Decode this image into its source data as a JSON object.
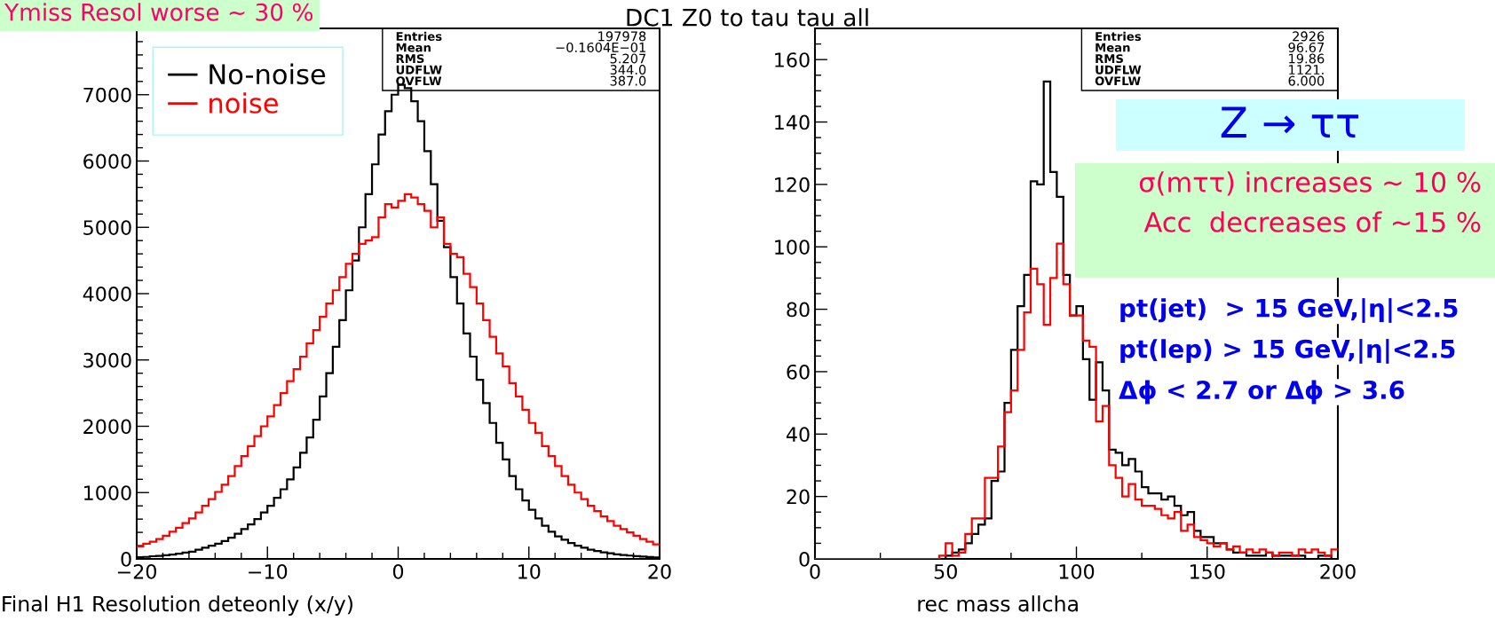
{
  "chart_data": [
    {
      "type": "histogram",
      "title": "DC1 Z0 to tau tau all",
      "xlabel": "Final H1 Resolution deteonly (x/y)",
      "legend": "top left",
      "bins": [
        -20,
        -19.5,
        -19,
        -18.5,
        -18,
        -17.5,
        -17,
        -16.5,
        -16,
        -15.5,
        -15,
        -14.5,
        -14,
        -13.5,
        -13,
        -12.5,
        -12,
        -11.5,
        -11,
        -10.5,
        -10,
        -9.5,
        -9,
        -8.5,
        -8,
        -7.5,
        -7,
        -6.5,
        -6,
        -5.5,
        -5,
        -4.5,
        -4,
        -3.5,
        -3,
        -2.5,
        -2,
        -1.5,
        -1,
        -0.5,
        0,
        0.5,
        1,
        1.5,
        2,
        2.5,
        3,
        3.5,
        4,
        4.5,
        5,
        5.5,
        6,
        6.5,
        7,
        7.5,
        8,
        8.5,
        9,
        9.5,
        10,
        10.5,
        11,
        11.5,
        12,
        12.5,
        13,
        13.5,
        14,
        14.5,
        15,
        15.5,
        16,
        16.5,
        17,
        17.5,
        18,
        18.5,
        19,
        19.5,
        20
      ],
      "series": [
        {
          "name": "No-noise",
          "color": "#000000",
          "values": [
            25,
            30,
            40,
            45,
            55,
            65,
            80,
            95,
            110,
            140,
            170,
            200,
            230,
            270,
            320,
            380,
            450,
            520,
            600,
            700,
            800,
            920,
            1050,
            1200,
            1380,
            1600,
            1830,
            2100,
            2450,
            2800,
            3200,
            3600,
            4050,
            4500,
            5000,
            5500,
            5950,
            6400,
            6750,
            7000,
            7150,
            7100,
            6900,
            6600,
            6150,
            5650,
            5100,
            4700,
            4250,
            3850,
            3400,
            3050,
            2700,
            2350,
            2050,
            1750,
            1500,
            1250,
            1050,
            880,
            740,
            610,
            500,
            410,
            340,
            290,
            240,
            200,
            170,
            140,
            120,
            100,
            85,
            70,
            60,
            50,
            42,
            35,
            28,
            22
          ]
        },
        {
          "name": "noise",
          "color": "#ff0000",
          "values": [
            190,
            230,
            260,
            300,
            350,
            410,
            470,
            540,
            610,
            700,
            800,
            900,
            1010,
            1120,
            1250,
            1400,
            1550,
            1700,
            1850,
            2000,
            2150,
            2320,
            2500,
            2680,
            2860,
            3050,
            3250,
            3450,
            3650,
            3850,
            4050,
            4250,
            4450,
            4600,
            4750,
            4800,
            4850,
            5150,
            5350,
            5300,
            5400,
            5500,
            5450,
            5350,
            5250,
            5000,
            5150,
            4750,
            4600,
            4550,
            4300,
            4100,
            3850,
            3600,
            3350,
            3100,
            2900,
            2650,
            2450,
            2250,
            2050,
            1900,
            1700,
            1550,
            1400,
            1250,
            1120,
            1000,
            900,
            800,
            720,
            640,
            570,
            500,
            450,
            400,
            350,
            300,
            260,
            220
          ]
        }
      ],
      "xlim": [
        -20,
        20
      ],
      "xticks": [
        {
          "value": -20,
          "label": "−20"
        },
        {
          "value": -18,
          "label": null
        },
        {
          "value": -16,
          "label": null
        },
        {
          "value": -14,
          "label": null
        },
        {
          "value": -12,
          "label": null
        },
        {
          "value": -10,
          "label": "−10"
        },
        {
          "value": -8,
          "label": null
        },
        {
          "value": -6,
          "label": null
        },
        {
          "value": -4,
          "label": null
        },
        {
          "value": -2,
          "label": null
        },
        0,
        {
          "value": 2,
          "label": null
        },
        {
          "value": 4,
          "label": null
        },
        {
          "value": 6,
          "label": null
        },
        {
          "value": 8,
          "label": null
        },
        10,
        {
          "value": 12,
          "label": null
        },
        {
          "value": 14,
          "label": null
        },
        {
          "value": 16,
          "label": null
        },
        {
          "value": 18,
          "label": null
        },
        20
      ],
      "ylim": [
        0,
        8000
      ],
      "yticks": [
        0,
        {
          "value": 200,
          "label": null
        },
        {
          "value": 400,
          "label": null
        },
        {
          "value": 600,
          "label": null
        },
        {
          "value": 800,
          "label": null
        },
        1000,
        {
          "value": 1200,
          "label": null
        },
        {
          "value": 1400,
          "label": null
        },
        {
          "value": 1600,
          "label": null
        },
        {
          "value": 1800,
          "label": null
        },
        2000,
        {
          "value": 2200,
          "label": null
        },
        {
          "value": 2400,
          "label": null
        },
        {
          "value": 2600,
          "label": null
        },
        {
          "value": 2800,
          "label": null
        },
        3000,
        {
          "value": 3200,
          "label": null
        },
        {
          "value": 3400,
          "label": null
        },
        {
          "value": 3600,
          "label": null
        },
        {
          "value": 3800,
          "label": null
        },
        4000,
        {
          "value": 4200,
          "label": null
        },
        {
          "value": 4400,
          "label": null
        },
        {
          "value": 4600,
          "label": null
        },
        {
          "value": 4800,
          "label": null
        },
        5000,
        {
          "value": 5200,
          "label": null
        },
        {
          "value": 5400,
          "label": null
        },
        {
          "value": 5600,
          "label": null
        },
        {
          "value": 5800,
          "label": null
        },
        6000,
        {
          "value": 6200,
          "label": null
        },
        {
          "value": 6400,
          "label": null
        },
        {
          "value": 6600,
          "label": null
        },
        {
          "value": 6800,
          "label": null
        },
        7000,
        {
          "value": 7200,
          "label": null
        },
        {
          "value": 7400,
          "label": null
        },
        {
          "value": 7600,
          "label": null
        },
        {
          "value": 7800,
          "label": null
        }
      ],
      "annotations": [
        "Ymiss Resol worse ~ 30 %",
        "Entries 197978",
        "Mean −0.1604E−01",
        "RMS 5.207",
        "UDFLW 344.0",
        "OVFLW 387.0"
      ]
    },
    {
      "type": "histogram",
      "xlabel": "rec mass allcha",
      "bins": [
        0,
        2.5,
        5,
        7.5,
        10,
        12.5,
        15,
        17.5,
        20,
        22.5,
        25,
        27.5,
        30,
        32.5,
        35,
        37.5,
        40,
        42.5,
        45,
        47.5,
        50,
        52.5,
        55,
        57.5,
        60,
        62.5,
        65,
        67.5,
        70,
        72.5,
        75,
        77.5,
        80,
        82.5,
        85,
        87.5,
        90,
        92.5,
        95,
        97.5,
        100,
        102.5,
        105,
        107.5,
        110,
        112.5,
        115,
        117.5,
        120,
        122.5,
        125,
        127.5,
        130,
        132.5,
        135,
        137.5,
        140,
        142.5,
        145,
        147.5,
        150,
        152.5,
        155,
        157.5,
        160,
        162.5,
        165,
        167.5,
        170,
        172.5,
        175,
        177.5,
        180,
        182.5,
        185,
        187.5,
        190,
        192.5,
        195,
        197.5,
        200
      ],
      "series": [
        {
          "color": "#000000",
          "values": [
            0,
            0,
            0,
            0,
            0,
            0,
            0,
            0,
            0,
            0,
            0,
            0,
            0,
            0,
            0,
            0,
            0,
            0,
            0,
            0,
            1,
            2,
            3,
            5,
            8,
            11,
            13,
            25,
            28,
            50,
            67,
            81,
            91,
            121,
            120,
            153,
            124,
            116,
            91,
            78,
            81,
            64,
            51,
            63,
            54,
            35,
            34,
            30,
            32,
            28,
            23,
            21,
            21,
            19,
            20,
            17,
            14,
            15,
            9,
            7,
            7,
            5,
            5,
            3,
            2,
            2,
            1,
            1,
            1,
            2,
            1,
            1,
            1,
            1,
            1,
            0,
            0,
            1,
            1,
            0
          ]
        },
        {
          "color": "#ff0000",
          "values": [
            0,
            0,
            0,
            0,
            0,
            0,
            0,
            0,
            0,
            0,
            0,
            0,
            0,
            0,
            0,
            0,
            0,
            0,
            0,
            1,
            5,
            1,
            2,
            8,
            13,
            13,
            26,
            26,
            36,
            47,
            54,
            67,
            79,
            93,
            88,
            75,
            90,
            101,
            88,
            78,
            78,
            70,
            68,
            44,
            49,
            30,
            26,
            20,
            24,
            19,
            17,
            17,
            16,
            14,
            13,
            15,
            9,
            11,
            7,
            6,
            5,
            4,
            5,
            3,
            4,
            2,
            3,
            2,
            3,
            2,
            1,
            2,
            2,
            1,
            3,
            2,
            3,
            2,
            1,
            3
          ]
        }
      ],
      "xlim": [
        0,
        200
      ],
      "xticks": [
        0,
        {
          "value": 25,
          "label": null
        },
        50,
        {
          "value": 75,
          "label": null
        },
        100,
        {
          "value": 125,
          "label": null
        },
        150,
        {
          "value": 175,
          "label": null
        },
        200
      ],
      "ylim": [
        0,
        170
      ],
      "yticks": [
        0,
        {
          "value": 5,
          "label": null
        },
        {
          "value": 10,
          "label": null
        },
        {
          "value": 15,
          "label": null
        },
        20,
        {
          "value": 25,
          "label": null
        },
        {
          "value": 30,
          "label": null
        },
        {
          "value": 35,
          "label": null
        },
        40,
        {
          "value": 45,
          "label": null
        },
        {
          "value": 50,
          "label": null
        },
        {
          "value": 55,
          "label": null
        },
        60,
        {
          "value": 65,
          "label": null
        },
        {
          "value": 70,
          "label": null
        },
        {
          "value": 75,
          "label": null
        },
        80,
        {
          "value": 85,
          "label": null
        },
        {
          "value": 90,
          "label": null
        },
        {
          "value": 95,
          "label": null
        },
        100,
        {
          "value": 105,
          "label": null
        },
        {
          "value": 110,
          "label": null
        },
        {
          "value": 115,
          "label": null
        },
        120,
        {
          "value": 125,
          "label": null
        },
        {
          "value": 130,
          "label": null
        },
        {
          "value": 135,
          "label": null
        },
        140,
        {
          "value": 145,
          "label": null
        },
        {
          "value": 150,
          "label": null
        },
        {
          "value": 155,
          "label": null
        },
        160,
        {
          "value": 165,
          "label": null
        }
      ],
      "annotations": [
        "Entries 2926",
        "Mean 96.67",
        "RMS 19.86",
        "UDFLW 1121.",
        "OVFLW 6.000",
        "Z → ττ",
        "σ(mττ) increases ~ 10 %",
        "Acc  decreases of ~15 %",
        "pt(jet)  > 15 GeV,|η|<2.5",
        "pt(lep) > 15 GeV,|η|<2.5",
        "Δϕ < 2.7 or Δϕ > 3.6"
      ]
    }
  ]
}
